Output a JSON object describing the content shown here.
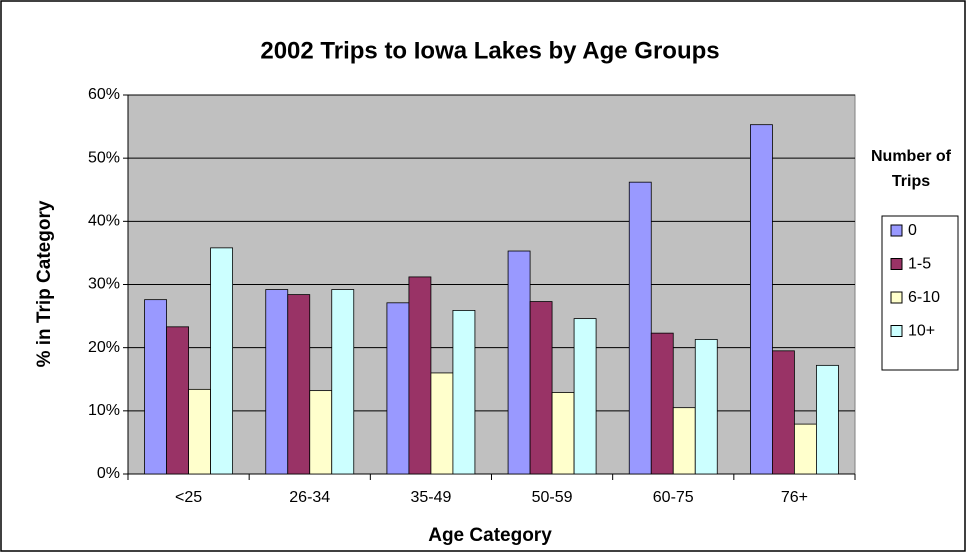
{
  "chart_data": {
    "type": "bar",
    "title": "2002 Trips to Iowa Lakes by Age Groups",
    "x_label": "Age Category",
    "y_label": "% in Trip Category",
    "legend_title": "Number of Trips",
    "legend_position": "right",
    "grid": true,
    "categories": [
      "<25",
      "26-34",
      "35-49",
      "50-59",
      "60-75",
      "76+"
    ],
    "series": [
      {
        "name": "0",
        "color": "#9999ff",
        "values": [
          27.6,
          29.2,
          27.1,
          35.3,
          46.2,
          55.3
        ]
      },
      {
        "name": "1-5",
        "color": "#993366",
        "values": [
          23.3,
          28.4,
          31.2,
          27.3,
          22.3,
          19.5
        ]
      },
      {
        "name": "6-10",
        "color": "#ffffcc",
        "values": [
          13.4,
          13.2,
          16.0,
          12.9,
          10.5,
          7.9
        ]
      },
      {
        "name": "10+",
        "color": "#ccffff",
        "values": [
          35.8,
          29.2,
          25.9,
          24.6,
          21.3,
          17.2
        ]
      }
    ],
    "ylim": [
      0,
      60
    ],
    "yticks": [
      {
        "value": 0,
        "label": "0%"
      },
      {
        "value": 10,
        "label": "10%"
      },
      {
        "value": 20,
        "label": "20%"
      },
      {
        "value": 30,
        "label": "30%"
      },
      {
        "value": 40,
        "label": "40%"
      },
      {
        "value": 50,
        "label": "50%"
      },
      {
        "value": 60,
        "label": "60%"
      }
    ]
  }
}
